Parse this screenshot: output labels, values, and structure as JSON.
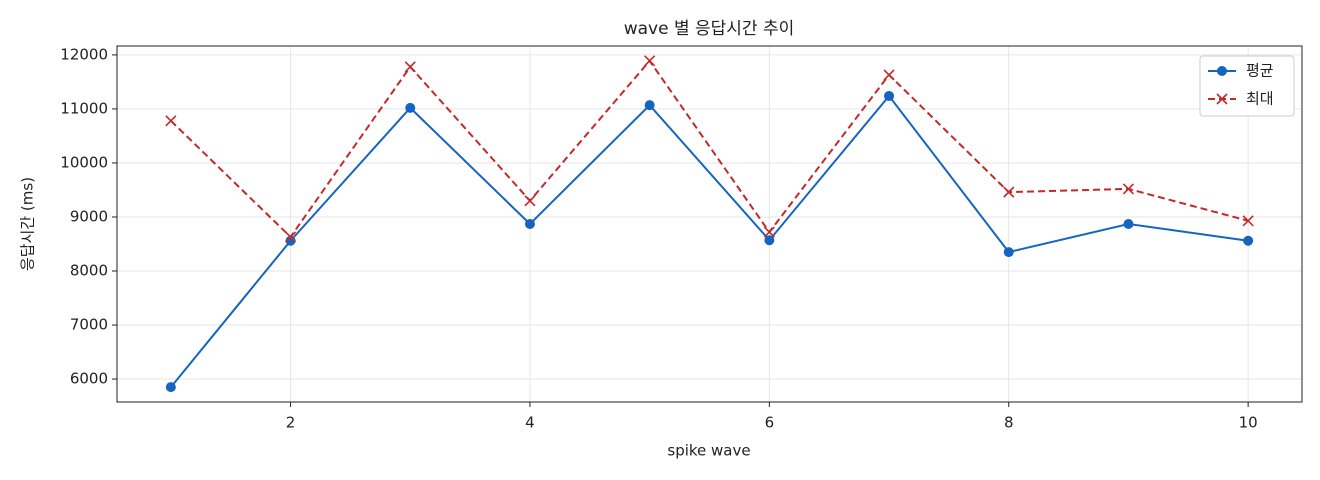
{
  "chart_data": {
    "type": "line",
    "title": "wave 별 응답시간 추이",
    "x_label": "spike wave",
    "y_label": "응답시간 (ms)",
    "x": [
      1,
      2,
      3,
      4,
      5,
      6,
      7,
      8,
      9,
      10
    ],
    "series": [
      {
        "name": "평균",
        "color": "#1565c0",
        "marker": "o",
        "linestyle": "solid",
        "values": [
          5850,
          8560,
          11020,
          8870,
          11070,
          8570,
          11240,
          8350,
          8870,
          8560
        ]
      },
      {
        "name": "최대",
        "color": "#c62828",
        "marker": "x",
        "linestyle": "dashed",
        "values": [
          10780,
          8630,
          11780,
          9300,
          11890,
          8720,
          11630,
          9460,
          9520,
          8930
        ]
      }
    ],
    "xlim": [
      0.55,
      10.45
    ],
    "xticks": [
      2,
      4,
      6,
      8,
      10
    ],
    "ylim": [
      5575,
      12165
    ],
    "yticks": [
      6000,
      7000,
      8000,
      9000,
      10000,
      11000,
      12000
    ],
    "grid": true,
    "legend": "upper right"
  }
}
